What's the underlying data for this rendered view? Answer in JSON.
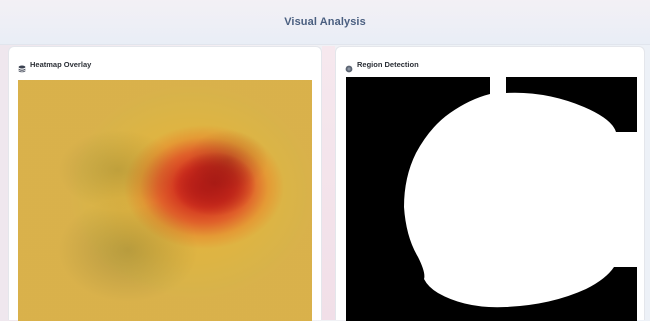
{
  "header": {
    "title": "Visual Analysis"
  },
  "panels": {
    "heatmap": {
      "title": "Heatmap Overlay",
      "icon": "layers-icon"
    },
    "region": {
      "title": "Region Detection",
      "icon": "circle-icon"
    }
  },
  "colors": {
    "header_text": "#4a5f80",
    "heat_core": "#b81f1a",
    "heat_mid": "#e7c14a",
    "heat_edge": "#7f86c8",
    "mask_background": "#000000",
    "mask_region": "#ffffff"
  }
}
